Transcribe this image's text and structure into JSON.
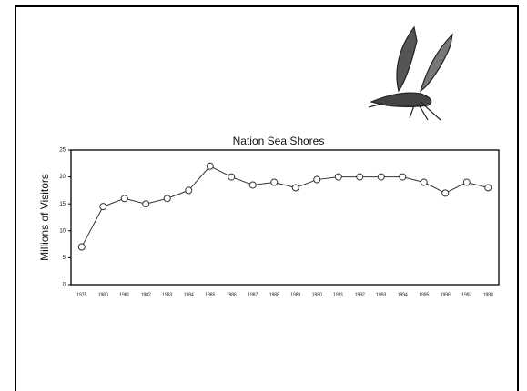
{
  "chart_data": {
    "type": "line",
    "title": "Nation Sea Shores",
    "y_label": "Millions of Visitors",
    "categories": [
      "1975",
      "1980",
      "1981",
      "1982",
      "1983",
      "1984",
      "1985",
      "1986",
      "1987",
      "1988",
      "1989",
      "1990",
      "1991",
      "1992",
      "1993",
      "1994",
      "1995",
      "1996",
      "1997",
      "1998"
    ],
    "values": [
      7,
      14.5,
      16,
      15,
      16,
      17.5,
      22,
      20,
      18.5,
      19,
      18,
      19.5,
      20,
      20,
      20,
      20,
      19,
      17,
      19,
      18
    ],
    "color": "#333333",
    "ylim": [
      0,
      25
    ],
    "yticks": [
      0,
      5,
      10,
      15,
      20,
      25
    ],
    "grid": false
  }
}
